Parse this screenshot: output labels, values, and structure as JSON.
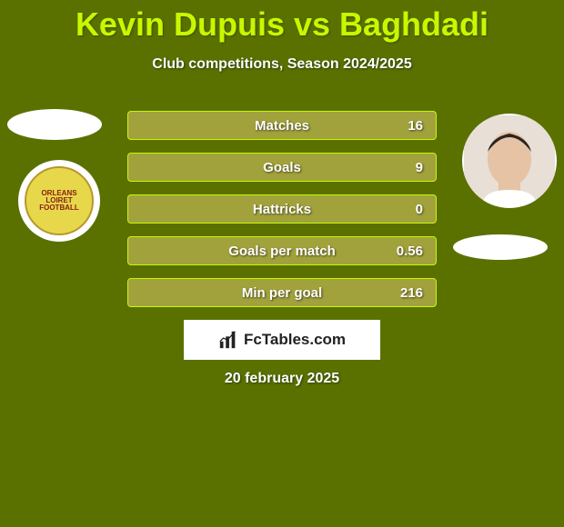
{
  "colors": {
    "background": "#5a7100",
    "accent": "#c7f800",
    "text": "#ffffff",
    "row_bg": "#a2a23d",
    "row_border": "#c7f800",
    "club_bg": "#e6d84a",
    "club_border": "#b8962d",
    "club_text": "#8a2015",
    "logo_panel": "#ffffff",
    "logo_text": "#222222"
  },
  "title": {
    "player1": "Kevin Dupuis",
    "vs": "vs",
    "player2": "Baghdadi",
    "title_fontsize": 36
  },
  "subtitle": "Club competitions, Season 2024/2025",
  "stats": {
    "label_center_ratio": 0.55,
    "rows": [
      {
        "label": "Matches",
        "value": "16"
      },
      {
        "label": "Goals",
        "value": "9"
      },
      {
        "label": "Hattricks",
        "value": "0"
      },
      {
        "label": "Goals per match",
        "value": "0.56"
      },
      {
        "label": "Min per goal",
        "value": "216"
      }
    ]
  },
  "left_club": {
    "line1": "ORLEANS",
    "line2": "LOIRET",
    "line3": "FOOTBALL"
  },
  "branding": {
    "text": "FcTables.com"
  },
  "date": "20 february 2025"
}
